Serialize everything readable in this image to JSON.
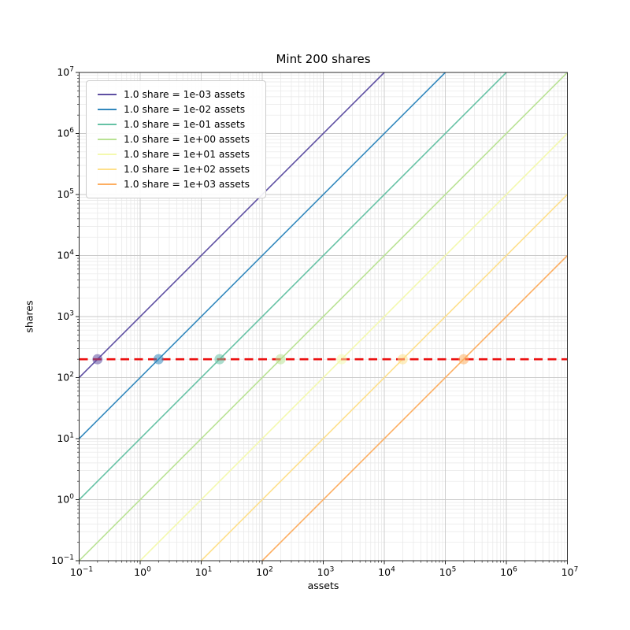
{
  "chart_data": {
    "type": "line",
    "title": "Mint 200 shares",
    "xlabel": "assets",
    "ylabel": "shares",
    "xscale": "log",
    "yscale": "log",
    "xlim": [
      0.1,
      10000000
    ],
    "ylim": [
      0.1,
      10000000
    ],
    "x_tick_exponents": [
      -1,
      0,
      1,
      2,
      3,
      4,
      5,
      6,
      7
    ],
    "y_tick_exponents": [
      -1,
      0,
      1,
      2,
      3,
      4,
      5,
      6,
      7
    ],
    "grid": {
      "major": true,
      "minor": true,
      "major_color": "#c9c9c9",
      "minor_color": "#e7e7e7"
    },
    "legend_position": "upper left",
    "shares_minted": 200,
    "series": [
      {
        "label": "1.0 share = 1e-03 assets",
        "color": "#5e4fa2",
        "assets_per_share": 0.001,
        "marker_at": {
          "assets": 0.2,
          "shares": 200
        }
      },
      {
        "label": "1.0 share = 1e-02 assets",
        "color": "#3288bd",
        "assets_per_share": 0.01,
        "marker_at": {
          "assets": 2,
          "shares": 200
        }
      },
      {
        "label": "1.0 share = 1e-01 assets",
        "color": "#66c2a5",
        "assets_per_share": 0.1,
        "marker_at": {
          "assets": 20,
          "shares": 200
        }
      },
      {
        "label": "1.0 share = 1e+00 assets",
        "color": "#b9e294",
        "assets_per_share": 1,
        "marker_at": {
          "assets": 200,
          "shares": 200
        }
      },
      {
        "label": "1.0 share = 1e+01 assets",
        "color": "#f4f9ae",
        "assets_per_share": 10,
        "marker_at": {
          "assets": 2000,
          "shares": 200
        }
      },
      {
        "label": "1.0 share = 1e+02 assets",
        "color": "#fee08b",
        "assets_per_share": 100,
        "marker_at": {
          "assets": 20000,
          "shares": 200
        }
      },
      {
        "label": "1.0 share = 1e+03 assets",
        "color": "#fdae61",
        "assets_per_share": 1000,
        "marker_at": {
          "assets": 200000,
          "shares": 200
        }
      }
    ],
    "hline": {
      "shares": 200,
      "color": "#ec1111",
      "style": "dashed"
    },
    "spine_color": "#2b2b2b",
    "marker_opacity": 0.55
  }
}
